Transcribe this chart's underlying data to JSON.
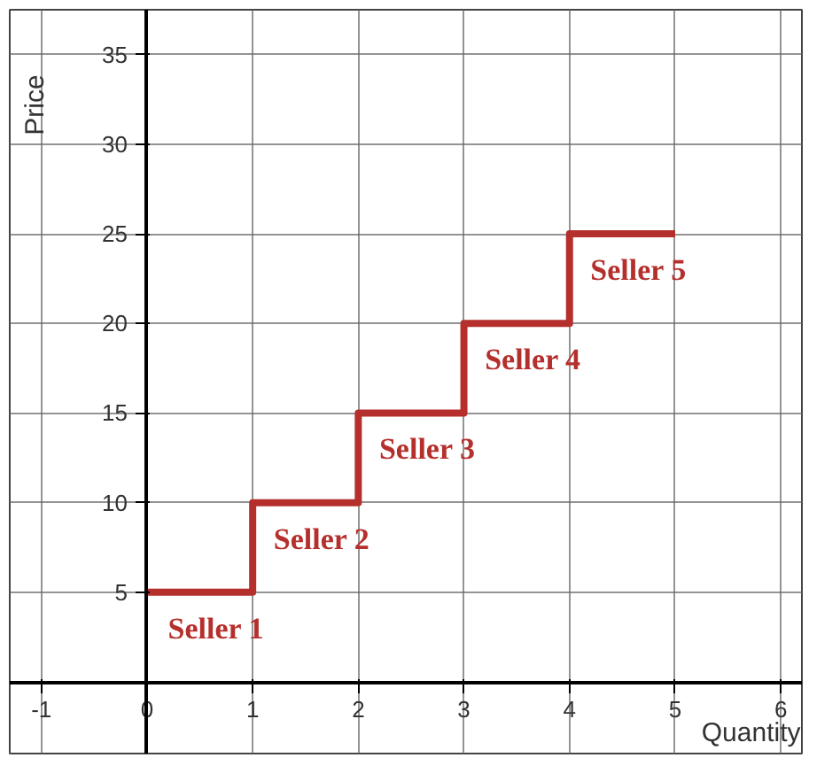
{
  "chart_data": {
    "type": "step",
    "xlabel": "Quantity",
    "ylabel": "Price",
    "x": [
      0,
      1,
      2,
      3,
      4,
      5
    ],
    "series": [
      {
        "color": "#b5302c",
        "values": [
          5,
          10,
          15,
          20,
          25,
          25
        ]
      }
    ],
    "xlim": [
      -1.3,
      6.2
    ],
    "ylim": [
      -4,
      37.5
    ],
    "xticks": [
      -1,
      0,
      1,
      2,
      3,
      4,
      5,
      6
    ],
    "yticks": [
      5,
      10,
      15,
      20,
      25,
      30,
      35
    ],
    "grid": true,
    "line_style": "solid",
    "marker": "none",
    "annotations": [
      {
        "text": "Seller 1",
        "x": 0.5,
        "y": 5
      },
      {
        "text": "Seller 2",
        "x": 1.5,
        "y": 10
      },
      {
        "text": "Seller 3",
        "x": 2.5,
        "y": 15
      },
      {
        "text": "Seller 4",
        "x": 3.5,
        "y": 20
      },
      {
        "text": "Seller 5",
        "x": 4.5,
        "y": 25
      }
    ]
  }
}
